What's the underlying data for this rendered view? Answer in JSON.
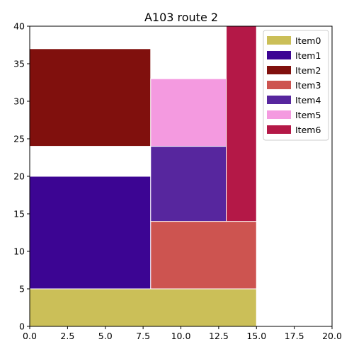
{
  "chart_data": {
    "type": "rectangle-packing",
    "title": "A103 route 2",
    "xlabel": "",
    "ylabel": "",
    "xlim": [
      0,
      20
    ],
    "ylim": [
      0,
      40
    ],
    "x_ticks": [
      "0.0",
      "2.5",
      "5.0",
      "7.5",
      "10.0",
      "12.5",
      "15.0",
      "17.5",
      "20.0"
    ],
    "y_ticks": [
      "0",
      "5",
      "10",
      "15",
      "20",
      "25",
      "30",
      "35",
      "40"
    ],
    "grid": false,
    "legend_position": "top-right",
    "items": [
      {
        "name": "Item0",
        "x": 0,
        "y": 0,
        "w": 15,
        "h": 5,
        "color": "#cbbf58"
      },
      {
        "name": "Item1",
        "x": 0,
        "y": 5,
        "w": 8,
        "h": 15,
        "color": "#3c0593"
      },
      {
        "name": "Item2",
        "x": 0,
        "y": 24,
        "w": 8,
        "h": 13,
        "color": "#80100d"
      },
      {
        "name": "Item3",
        "x": 8,
        "y": 5,
        "w": 7,
        "h": 9,
        "color": "#cd5450"
      },
      {
        "name": "Item4",
        "x": 8,
        "y": 14,
        "w": 5,
        "h": 10,
        "color": "#57269e"
      },
      {
        "name": "Item5",
        "x": 8,
        "y": 24,
        "w": 5,
        "h": 9,
        "color": "#f49ae0"
      },
      {
        "name": "Item6",
        "x": 13,
        "y": 14,
        "w": 2,
        "h": 26,
        "color": "#b41847"
      }
    ]
  }
}
